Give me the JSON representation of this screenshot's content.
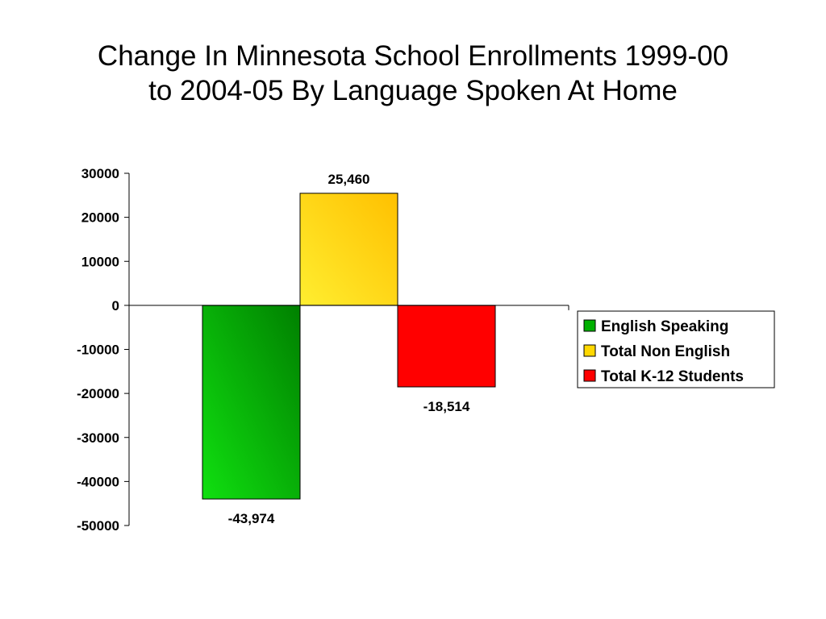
{
  "slide": {
    "title_line1": "Change In Minnesota School Enrollments 1999-00",
    "title_line2": "to 2004-05 By Language Spoken At Home"
  },
  "chart_data": {
    "type": "bar",
    "title": "Change In Minnesota School Enrollments 1999-00 to 2004-05 By Language Spoken At Home",
    "xlabel": "",
    "ylabel": "",
    "ylim": [
      -50000,
      30000
    ],
    "yticks": [
      30000,
      20000,
      10000,
      0,
      -10000,
      -20000,
      -30000,
      -40000,
      -50000
    ],
    "grid": false,
    "legend_position": "right",
    "series": [
      {
        "name": "English Speaking",
        "value": -43974,
        "label": "-43,974",
        "color": "#00b000",
        "color_light": "#10e010",
        "color_dark": "#008000"
      },
      {
        "name": "Total Non English",
        "value": 25460,
        "label": "25,460",
        "color": "#ffd800",
        "color_light": "#ffee30",
        "color_dark": "#ffc000"
      },
      {
        "name": "Total K-12 Students",
        "value": -18514,
        "label": "-18,514",
        "color": "#ff0000",
        "color_light": "#ff0000",
        "color_dark": "#ff0000"
      }
    ]
  }
}
